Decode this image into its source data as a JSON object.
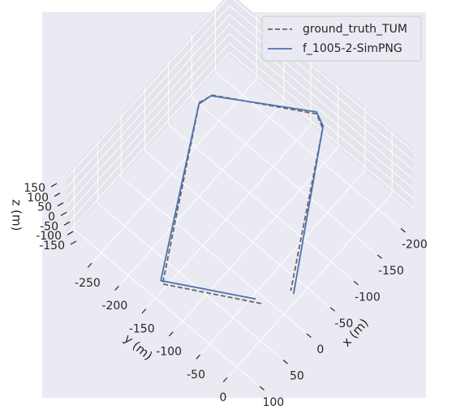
{
  "chart_data": {
    "type": "line3d",
    "xlabel": "x (m)",
    "ylabel": "y (m)",
    "zlabel": "z (m)",
    "xlim": [
      -230,
      117
    ],
    "ylim": [
      -300,
      39
    ],
    "zlim": [
      -170,
      170
    ],
    "xticks": [
      -200,
      -150,
      -100,
      -50,
      0,
      50,
      100
    ],
    "yticks": [
      -250,
      -200,
      -150,
      -100,
      -50,
      0
    ],
    "zticks": [
      -150,
      -100,
      -50,
      0,
      50,
      100,
      150
    ],
    "grid": true,
    "legend": "upper right",
    "series": [
      {
        "name": "ground_truth_TUM",
        "color": "#666666",
        "linestyle": "dashed",
        "x": [
          9,
          78,
          -152,
          -172,
          -247,
          -237,
          -32
        ],
        "y": [
          -34,
          -156,
          -288,
          -281,
          -154,
          -134,
          -15
        ]
      },
      {
        "name": "f_1005-2-SimPNG",
        "color": "#4c72b0",
        "linestyle": "solid",
        "x": [
          9,
          76,
          -150,
          -170,
          -249,
          -240,
          -31
        ],
        "y": [
          -44,
          -161,
          -287,
          -282,
          -156,
          -136,
          -9
        ]
      }
    ]
  }
}
